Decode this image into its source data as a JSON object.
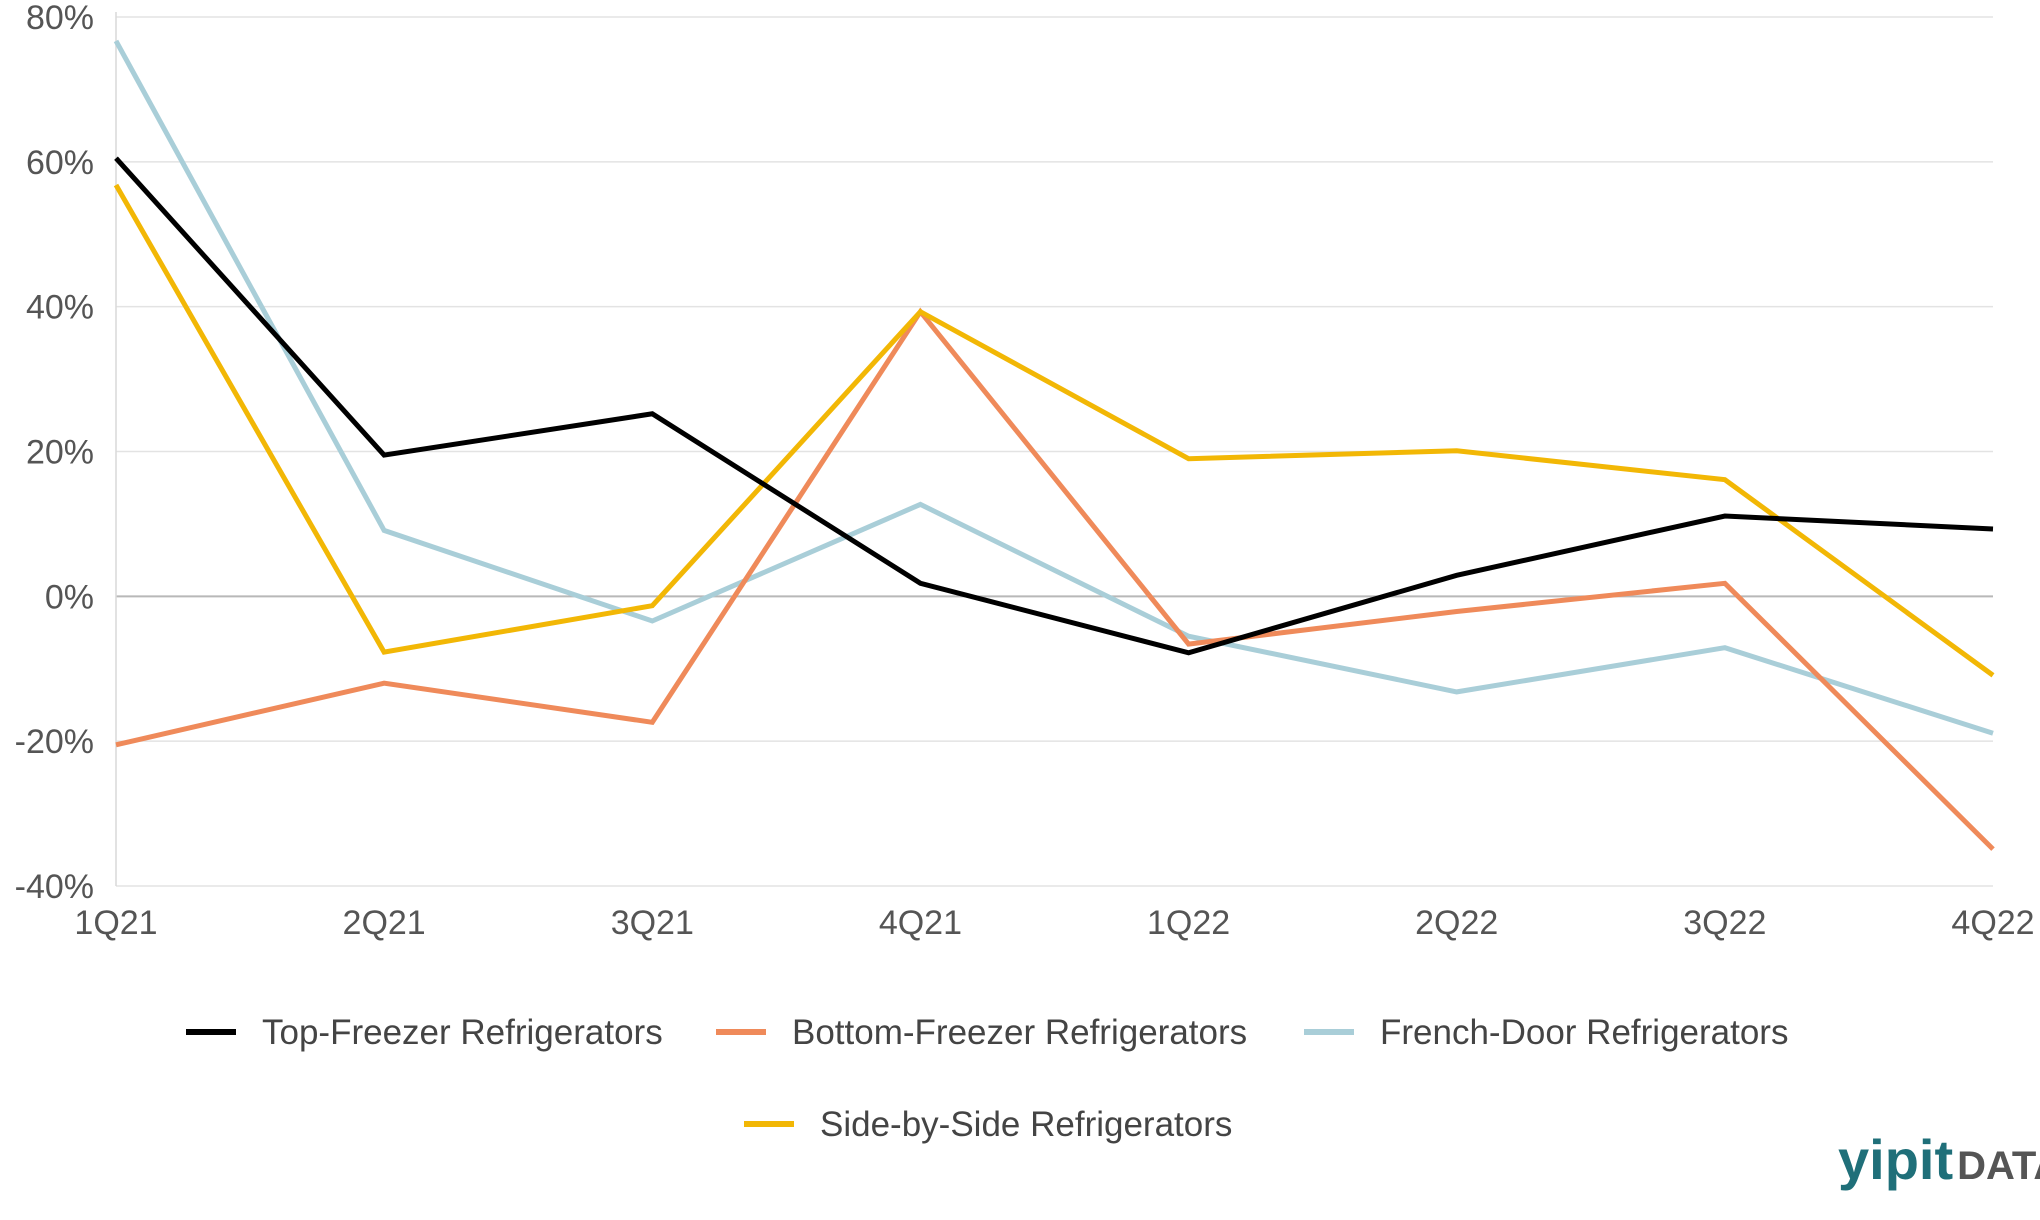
{
  "chart_data": {
    "type": "line",
    "categories": [
      "1Q21",
      "2Q21",
      "3Q21",
      "4Q21",
      "1Q22",
      "2Q22",
      "3Q22",
      "4Q22"
    ],
    "y_ticks": [
      "80%",
      "60%",
      "40%",
      "20%",
      "0%",
      "-20%",
      "-40%"
    ],
    "ylim": [
      -40,
      80
    ],
    "y_unit": "%",
    "grid": true,
    "legend_position": "bottom",
    "series": [
      {
        "name": "Top-Freezer Refrigerators",
        "color": "#000000",
        "values": [
          60.5,
          19.5,
          25.2,
          1.8,
          -7.8,
          2.9,
          11.1,
          9.3
        ]
      },
      {
        "name": "Bottom-Freezer Refrigerators",
        "color": "#ef8a5a",
        "values": [
          -20.5,
          -12.0,
          -17.4,
          39.3,
          -6.6,
          -2.1,
          1.8,
          -34.9
        ]
      },
      {
        "name": "French-Door Refrigerators",
        "color": "#a9ced8",
        "values": [
          76.7,
          9.1,
          -3.4,
          12.7,
          -5.5,
          -13.2,
          -7.1,
          -18.9
        ]
      },
      {
        "name": "Side-by-Side Refrigerators",
        "color": "#f2b705",
        "values": [
          56.8,
          -7.7,
          -1.3,
          39.3,
          19.0,
          20.1,
          16.1,
          -10.9
        ]
      }
    ]
  },
  "logo": {
    "brand": "yipit",
    "suffix": "DATA",
    "color": "#1f6f79"
  }
}
